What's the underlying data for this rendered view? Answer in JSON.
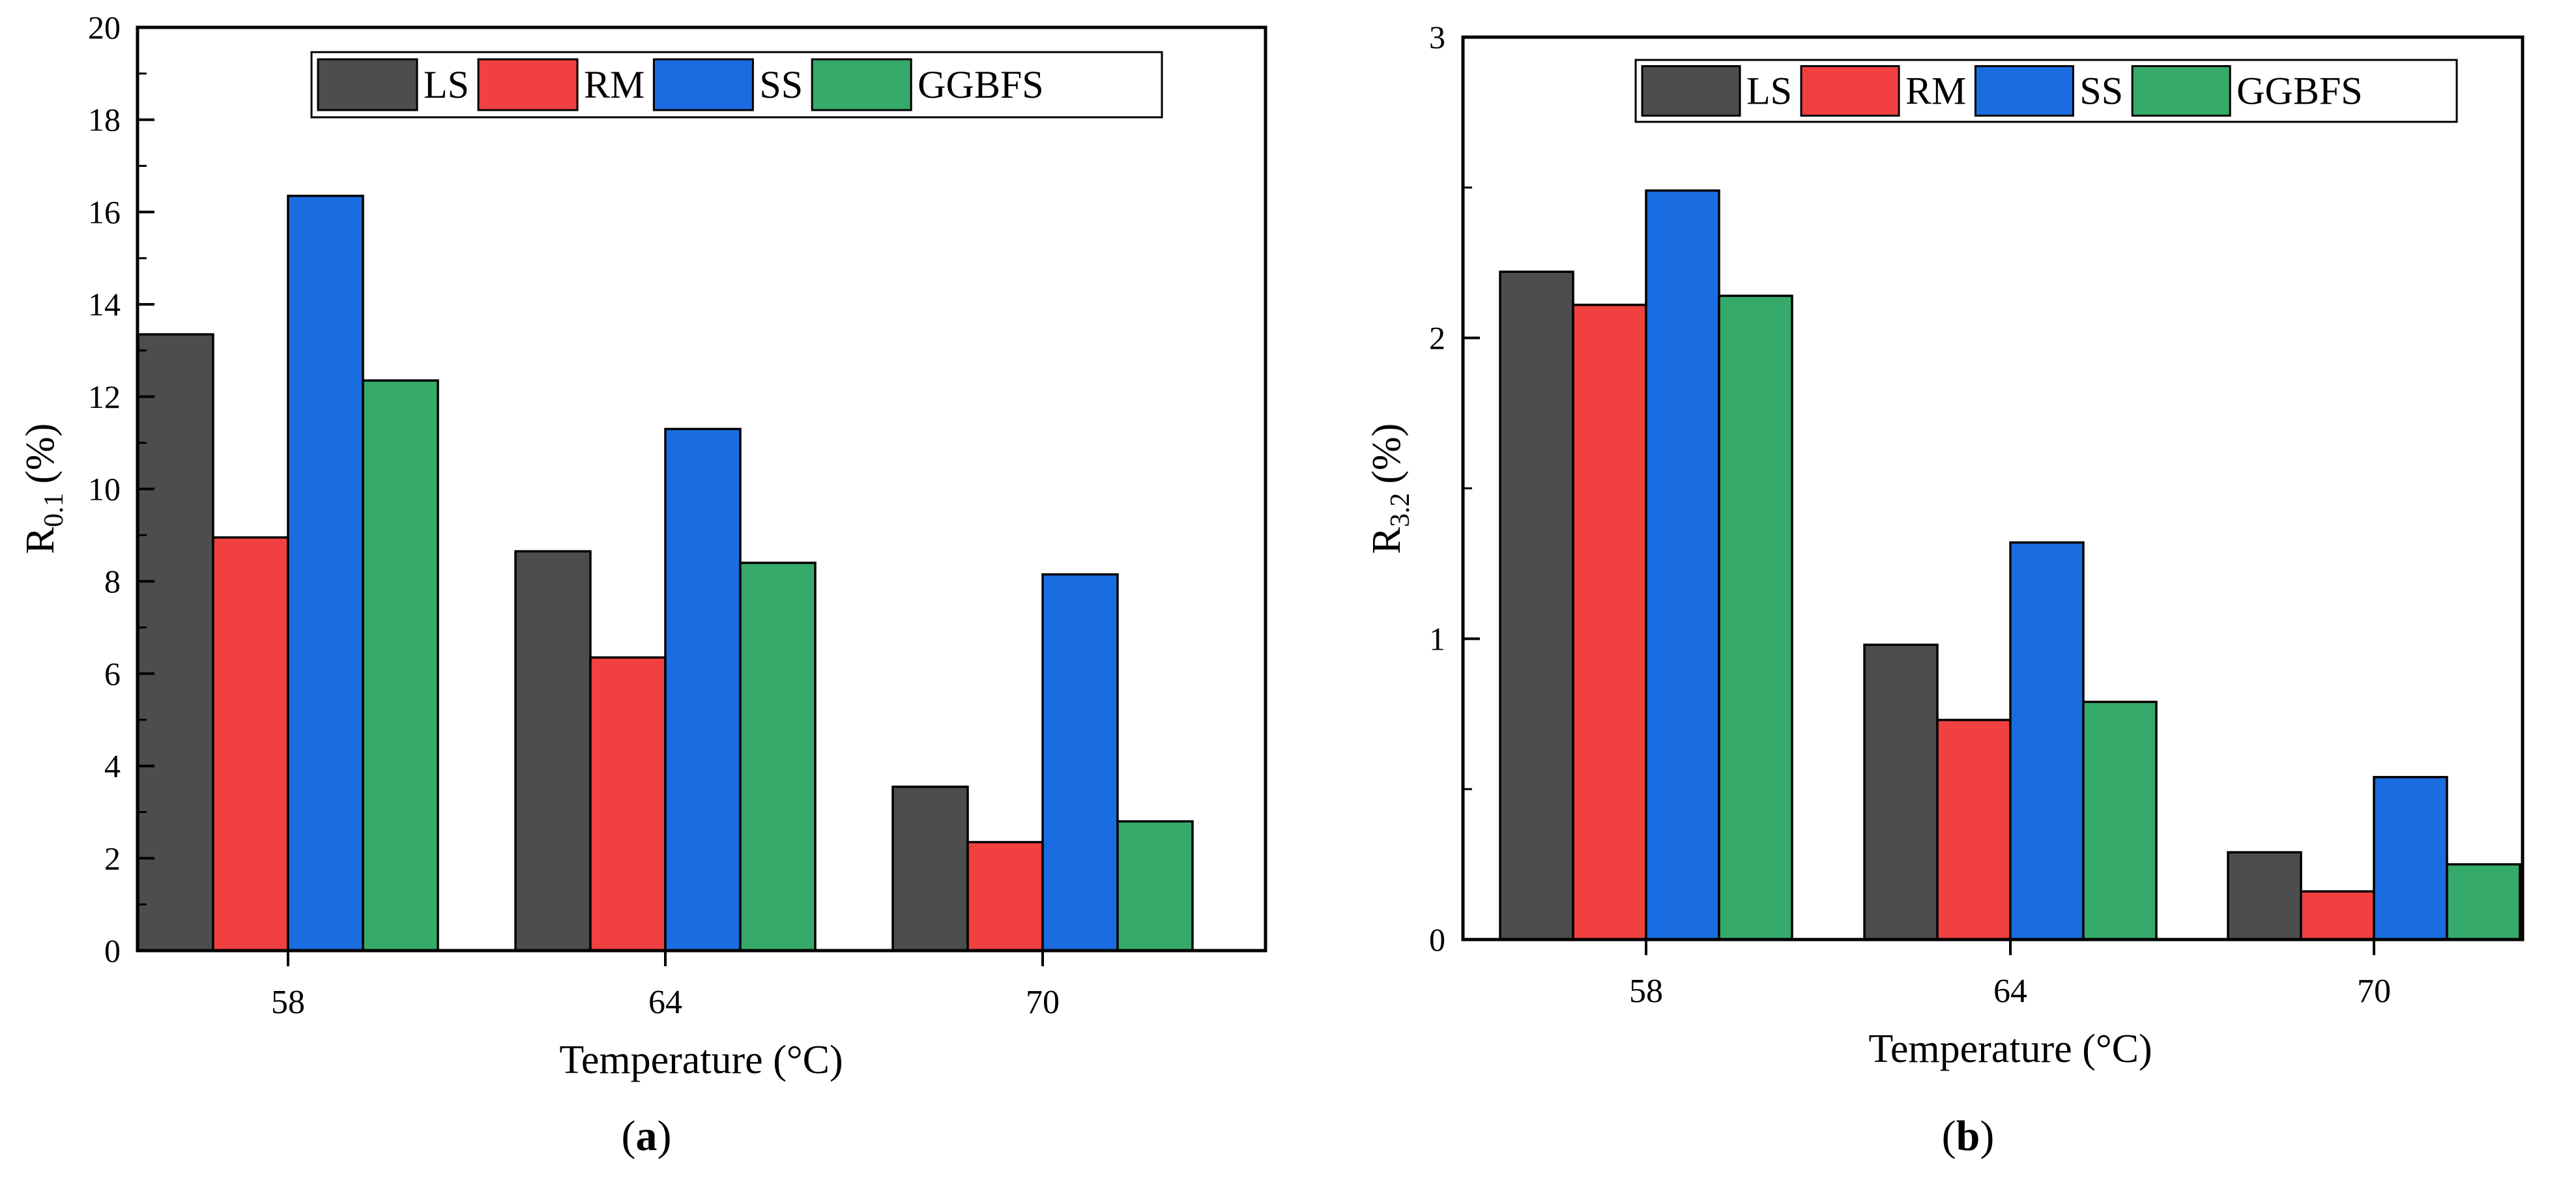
{
  "chart_data": [
    {
      "type": "bar",
      "panel_label": "a",
      "categories": [
        "58",
        "64",
        "70"
      ],
      "series": [
        {
          "name": "LS",
          "values": [
            13.35,
            8.65,
            3.55
          ]
        },
        {
          "name": "RM",
          "values": [
            8.95,
            6.35,
            2.35
          ]
        },
        {
          "name": "SS",
          "values": [
            16.35,
            11.3,
            8.15
          ]
        },
        {
          "name": "GGBFS",
          "values": [
            12.35,
            8.4,
            2.8
          ]
        }
      ],
      "xlabel": "Temperature (°C)",
      "ylabel_main": "R",
      "ylabel_sub": "0.1",
      "ylabel_unit": "(%)",
      "ylim": [
        0,
        20
      ],
      "yticks": [
        0,
        2,
        4,
        6,
        8,
        10,
        12,
        14,
        16,
        18,
        20
      ],
      "legend_position": "top-right",
      "grid": false
    },
    {
      "type": "bar",
      "panel_label": "b",
      "categories": [
        "58",
        "64",
        "70"
      ],
      "series": [
        {
          "name": "LS",
          "values": [
            2.22,
            0.98,
            0.29
          ]
        },
        {
          "name": "RM",
          "values": [
            2.11,
            0.73,
            0.16
          ]
        },
        {
          "name": "SS",
          "values": [
            2.49,
            1.32,
            0.54
          ]
        },
        {
          "name": "GGBFS",
          "values": [
            2.14,
            0.79,
            0.25
          ]
        }
      ],
      "xlabel": "Temperature (°C)",
      "ylabel_main": "R",
      "ylabel_sub": "3.2",
      "ylabel_unit": "(%)",
      "ylim": [
        0,
        3
      ],
      "yticks": [
        0,
        1,
        2,
        3
      ],
      "legend_position": "top-right",
      "grid": false
    }
  ],
  "colors": {
    "LS": "#4d4d4d",
    "RM": "#f04040",
    "SS": "#1a6de0",
    "GGBFS": "#36aa6a"
  }
}
